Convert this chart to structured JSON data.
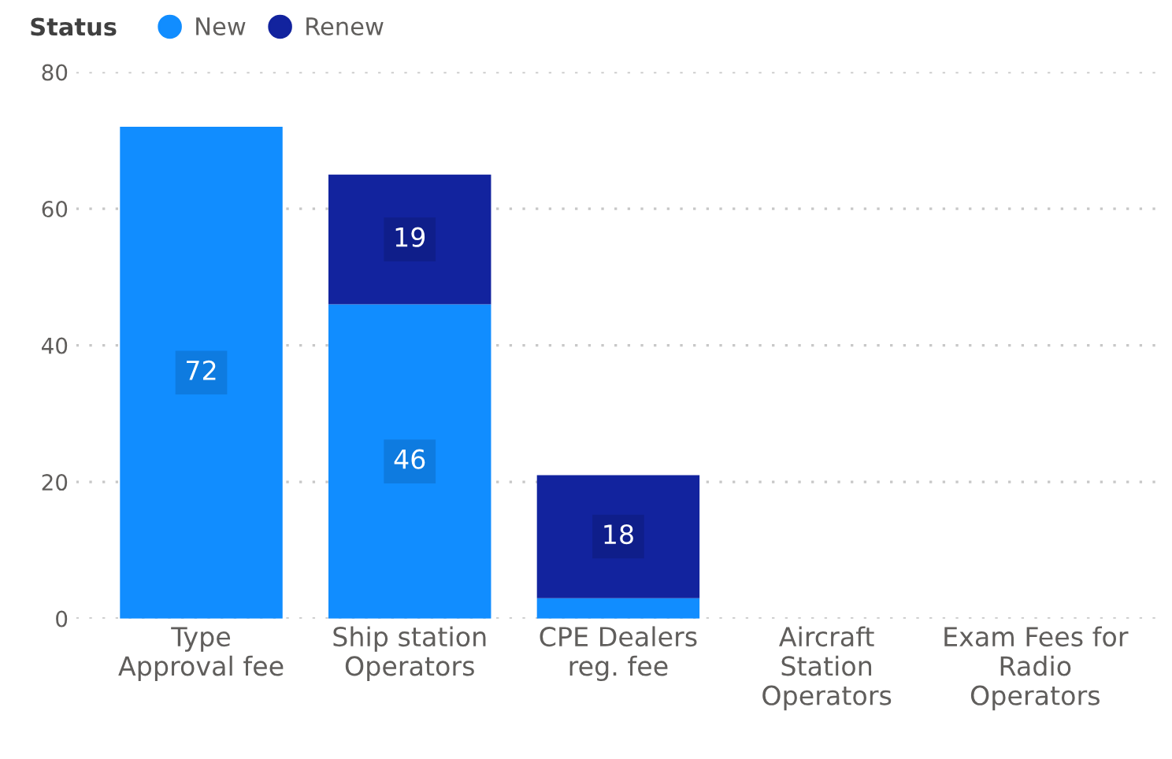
{
  "chart_data": {
    "type": "bar",
    "stacked": true,
    "legend_title": "Status",
    "legend": "top left",
    "categories": [
      "Type\nApproval fee",
      "Ship station\nOperators",
      "CPE Dealers\nreg. fee",
      "Aircraft\nStation\nOperators",
      "Exam Fees for\nRadio\nOperators"
    ],
    "series": [
      {
        "name": "New",
        "color": "#118dff",
        "values": [
          72,
          46,
          3,
          null,
          null
        ],
        "value_labels": [
          "72",
          "46",
          null,
          null,
          null
        ]
      },
      {
        "name": "Renew",
        "color": "#12239e",
        "values": [
          null,
          19,
          18,
          null,
          null
        ],
        "value_labels": [
          null,
          "19",
          "18",
          null,
          null
        ]
      }
    ],
    "ylim": [
      0,
      80
    ],
    "yticks": [
      0,
      20,
      40,
      60,
      80
    ],
    "grid": "y"
  }
}
